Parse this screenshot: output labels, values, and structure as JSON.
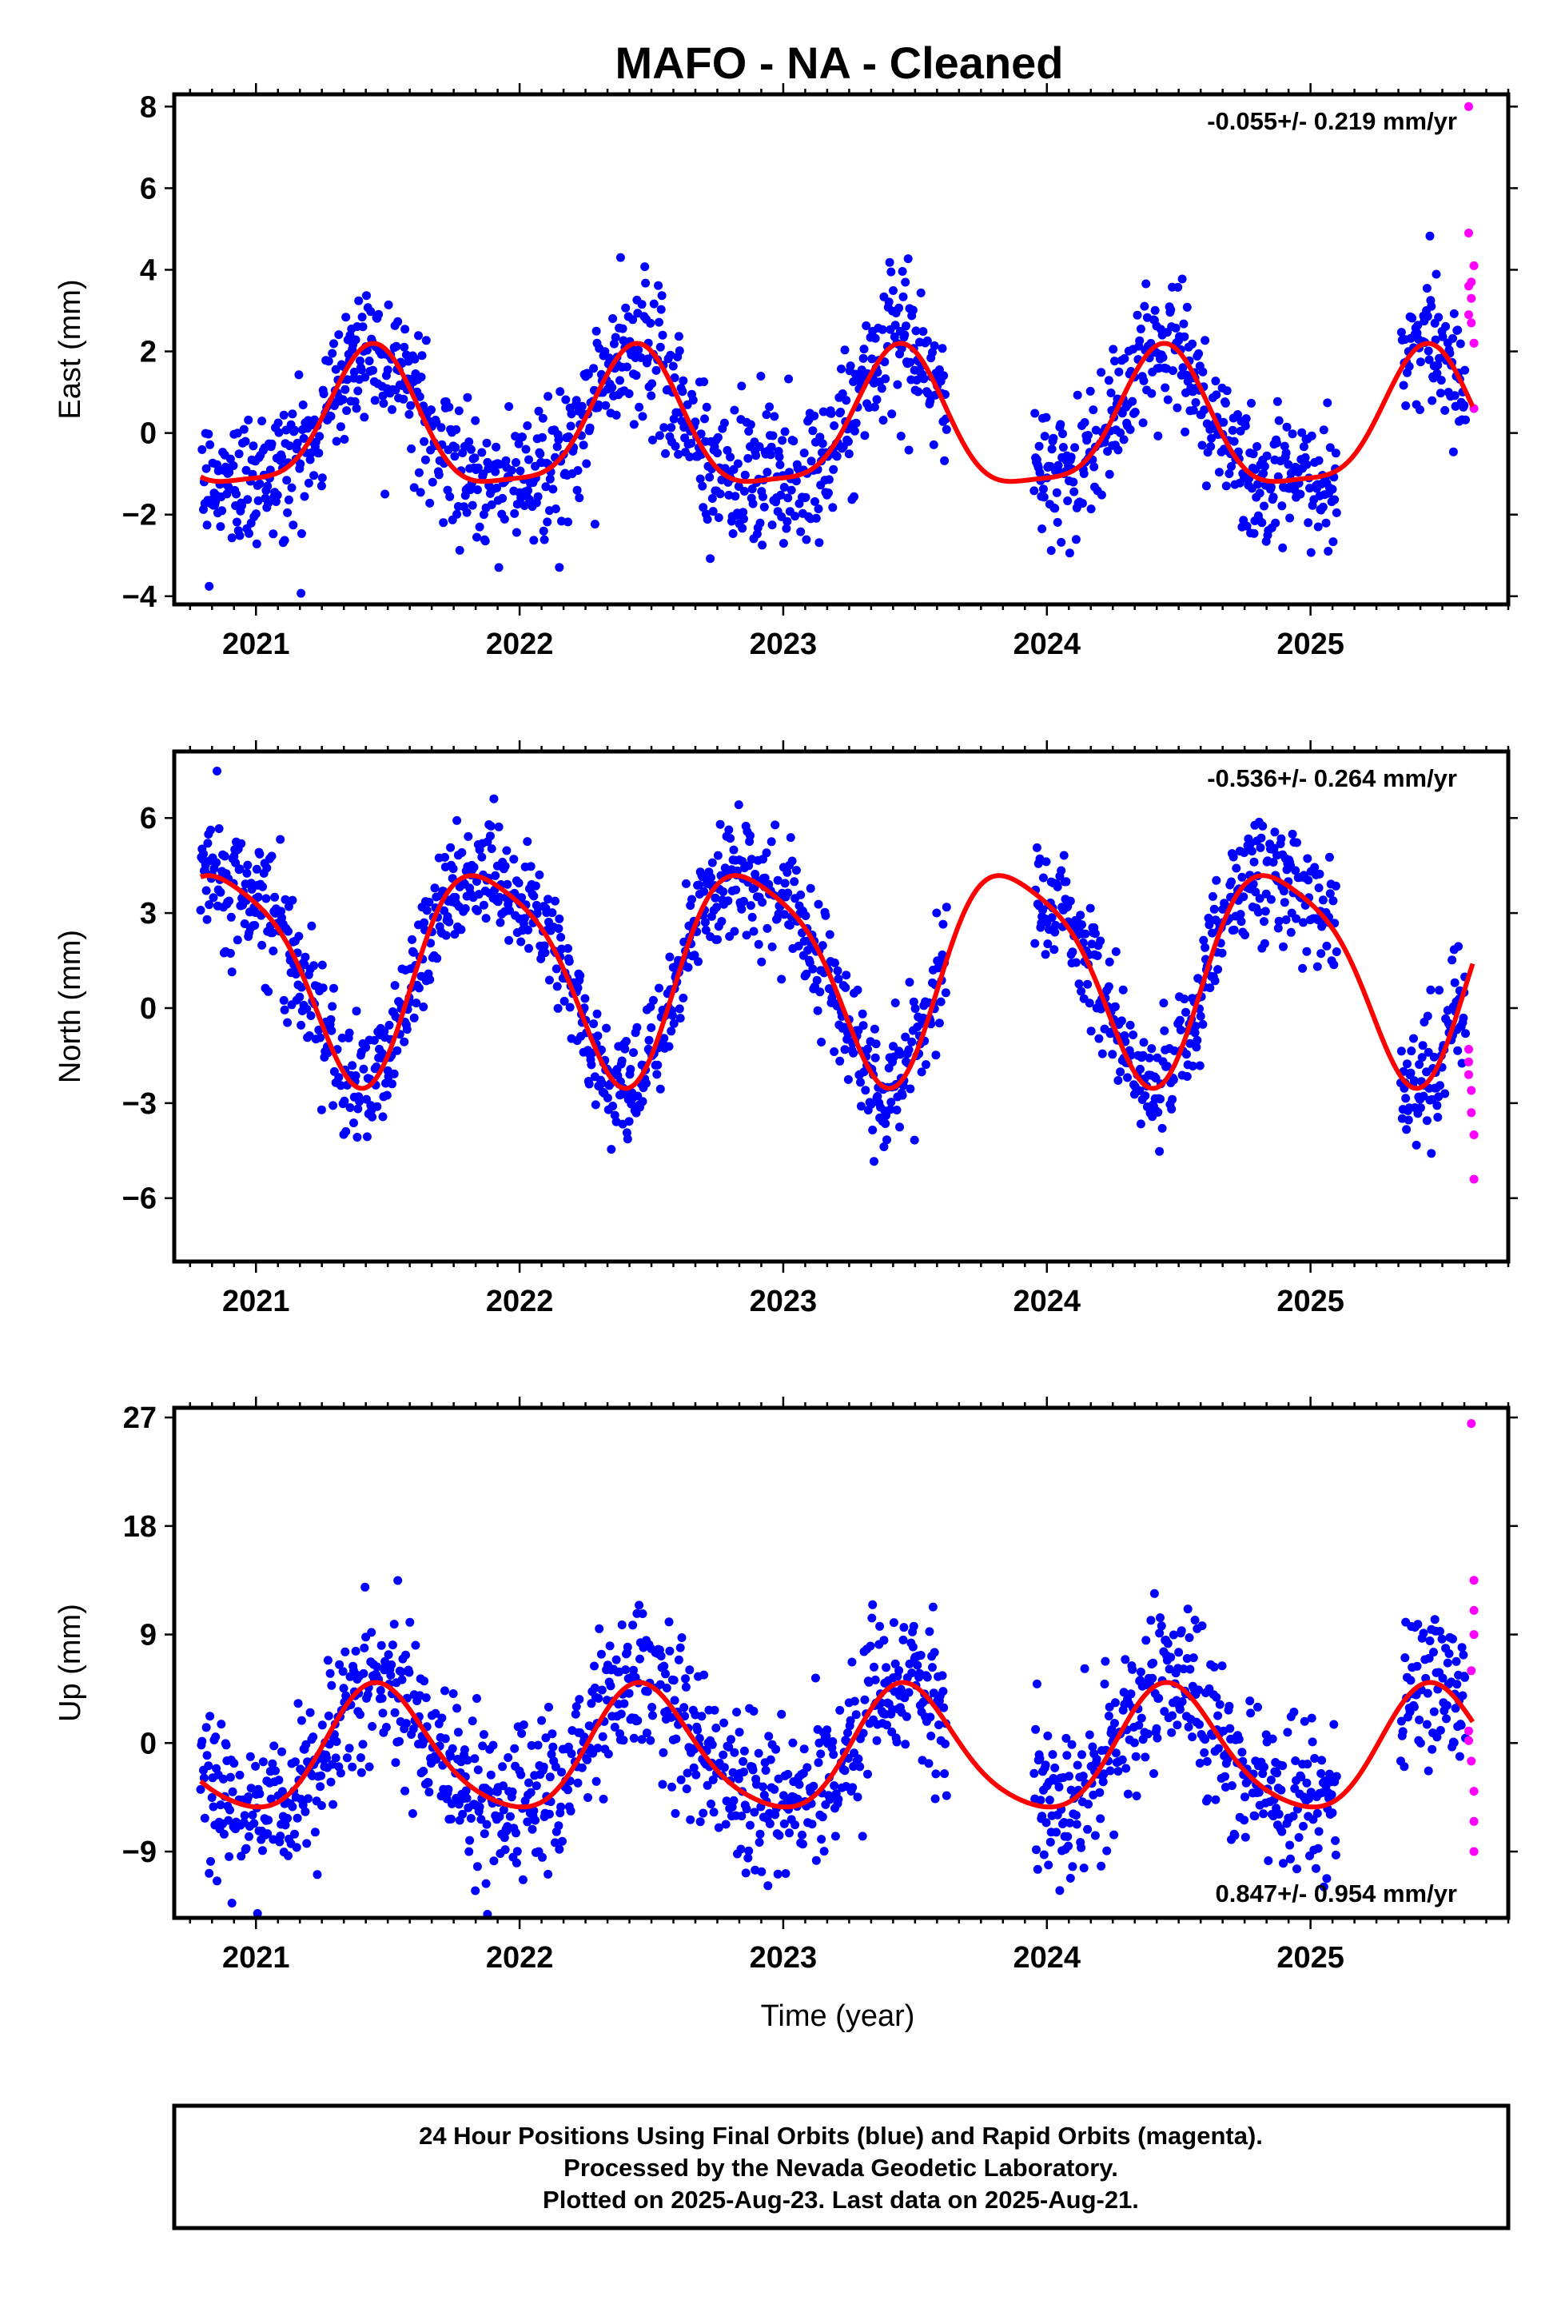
{
  "title": "MAFO  - NA - Cleaned",
  "xlabel": "Time (year)",
  "footer": {
    "line1": "24 Hour Positions Using Final Orbits (blue) and Rapid Orbits (magenta).",
    "line2": "Processed by the Nevada Geodetic Laboratory.",
    "line3": "Plotted on 2025-Aug-23. Last data on 2025-Aug-21."
  },
  "colors": {
    "final": "#0000ff",
    "rapid": "#ff00ff",
    "fit": "#ff0000",
    "frame": "#000000"
  },
  "chart_data": [
    {
      "type": "scatter",
      "ylabel": "East (mm)",
      "rate": "-0.055+/- 0.219 mm/yr",
      "xlim": [
        2020.69,
        2025.75
      ],
      "ylim": [
        -4.2,
        8.3
      ],
      "xticks": [
        2021,
        2022,
        2023,
        2024,
        2025
      ],
      "xtick_labels": [
        "2021",
        "2022",
        "2023",
        "2024",
        "2025"
      ],
      "yticks": [
        -4,
        -2,
        0,
        2,
        4,
        6,
        8
      ],
      "ytick_labels": [
        "−4",
        "−2",
        "0",
        "2",
        "4",
        "6",
        "8"
      ],
      "model": {
        "offset": 0.1,
        "annual": [
          -1.55,
          0.62
        ],
        "semiannual": [
          0.35,
          -0.25
        ]
      },
      "noise_sd": 0.85,
      "gaps": [
        [
          2023.62,
          2023.95
        ],
        [
          2025.1,
          2025.34
        ]
      ],
      "series": [
        {
          "name": "Final Orbits",
          "x_start": 2020.79,
          "x_end": 2025.59,
          "step": 0.0027
        },
        {
          "name": "Rapid Orbits",
          "values": [
            [
              2025.6,
              8.0
            ],
            [
              2025.6,
              4.9
            ],
            [
              2025.6,
              3.6
            ],
            [
              2025.61,
              3.3
            ],
            [
              2025.61,
              2.7
            ],
            [
              2025.62,
              4.1
            ],
            [
              2025.62,
              2.2
            ],
            [
              2025.62,
              0.6
            ],
            [
              2025.61,
              3.7
            ],
            [
              2025.6,
              2.9
            ]
          ]
        }
      ],
      "fit_line": {
        "x": [
          2020.79,
          2025.62
        ]
      }
    },
    {
      "type": "scatter",
      "ylabel": "North (mm)",
      "rate": "-0.536+/- 0.264 mm/yr",
      "xlim": [
        2020.69,
        2025.75
      ],
      "ylim": [
        -8.0,
        8.1
      ],
      "xticks": [
        2021,
        2022,
        2023,
        2024,
        2025
      ],
      "xtick_labels": [
        "2021",
        "2022",
        "2023",
        "2024",
        "2025"
      ],
      "yticks": [
        -6,
        -3,
        0,
        3,
        6
      ],
      "ytick_labels": [
        "−6",
        "−3",
        "0",
        "3",
        "6"
      ],
      "model": {
        "offset": 1.3,
        "annual": [
          2.4,
          -2.2
        ],
        "semiannual": [
          -0.4,
          0.5
        ]
      },
      "noise_sd": 0.95,
      "gaps": [
        [
          2023.62,
          2023.95
        ],
        [
          2025.1,
          2025.34
        ]
      ],
      "series": [
        {
          "name": "Final Orbits",
          "x_start": 2020.79,
          "x_end": 2025.59,
          "step": 0.0027
        },
        {
          "name": "Rapid Orbits",
          "values": [
            [
              2025.6,
              -1.3
            ],
            [
              2025.6,
              -2.1
            ],
            [
              2025.61,
              -2.6
            ],
            [
              2025.61,
              -3.3
            ],
            [
              2025.62,
              -4.0
            ],
            [
              2025.62,
              -5.4
            ],
            [
              2025.6,
              -1.7
            ]
          ]
        }
      ],
      "fit_line": {
        "x": [
          2020.79,
          2025.62
        ]
      }
    },
    {
      "type": "scatter",
      "ylabel": "Up (mm)",
      "rate": "0.847+/- 0.954 mm/yr",
      "xlim": [
        2020.69,
        2025.75
      ],
      "ylim": [
        -14.5,
        27.8
      ],
      "xticks": [
        2021,
        2022,
        2023,
        2024,
        2025
      ],
      "xtick_labels": [
        "2021",
        "2022",
        "2023",
        "2024",
        "2025"
      ],
      "yticks": [
        -9,
        0,
        9,
        18,
        27
      ],
      "ytick_labels": [
        "−9",
        "0",
        "9",
        "18",
        "27"
      ],
      "model": {
        "offset": -0.8,
        "annual": [
          -5.0,
          1.0
        ],
        "semiannual": [
          0.5,
          -0.6
        ]
      },
      "noise_sd": 3.2,
      "gaps": [
        [
          2023.62,
          2023.95
        ],
        [
          2025.1,
          2025.34
        ]
      ],
      "series": [
        {
          "name": "Final Orbits",
          "x_start": 2020.79,
          "x_end": 2025.59,
          "step": 0.0027
        },
        {
          "name": "Rapid Orbits",
          "values": [
            [
              2025.61,
              26.5
            ],
            [
              2025.62,
              13.5
            ],
            [
              2025.62,
              11.0
            ],
            [
              2025.62,
              9.0
            ],
            [
              2025.61,
              6.0
            ],
            [
              2025.6,
              1.0
            ],
            [
              2025.61,
              -1.5
            ],
            [
              2025.62,
              -4.0
            ],
            [
              2025.62,
              -6.5
            ],
            [
              2025.62,
              -9.0
            ],
            [
              2025.6,
              0.2
            ]
          ]
        }
      ],
      "fit_line": {
        "x": [
          2020.79,
          2025.62
        ]
      }
    }
  ]
}
